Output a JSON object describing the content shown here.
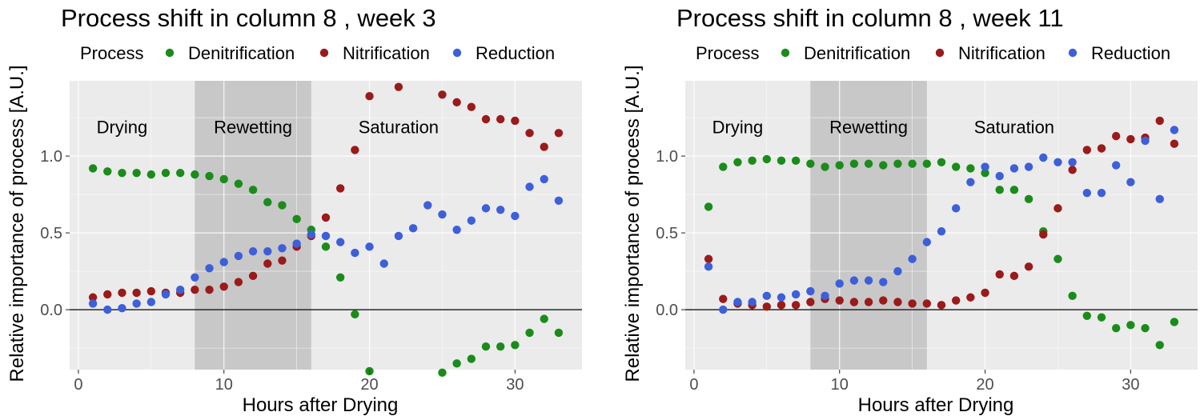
{
  "chart_data": [
    {
      "type": "scatter",
      "title": "Process shift in column 8 , week 3",
      "xlabel": "Hours after Drying",
      "ylabel": "Relative importance of process [A.U.]",
      "xlim": [
        -0.6,
        34.6
      ],
      "ylim": [
        -0.39,
        1.49
      ],
      "xticks": [
        0,
        10,
        20,
        30
      ],
      "yticks": [
        0.0,
        0.5,
        1.0
      ],
      "ytick_labels": [
        "0.0",
        "0.5",
        "1.0"
      ],
      "grid": true,
      "hline_y": 0,
      "legend": {
        "title": "Process",
        "position": "top"
      },
      "phases": [
        {
          "label": "Drying",
          "x0": -0.6,
          "x1": 8,
          "shaded": false
        },
        {
          "label": "Rewetting",
          "x0": 8,
          "x1": 16,
          "shaded": true
        },
        {
          "label": "Saturation",
          "x0": 16,
          "x1": 34.6,
          "shaded": false
        }
      ],
      "phase_label_y": 1.19,
      "series": [
        {
          "name": "Denitrification",
          "color": "#1a8c1a",
          "x": [
            1,
            2,
            3,
            4,
            5,
            6,
            7,
            8,
            9,
            10,
            11,
            12,
            13,
            14,
            15,
            16,
            17,
            18,
            19,
            20,
            25,
            26,
            27,
            28,
            29,
            30,
            31,
            32,
            33
          ],
          "y": [
            0.92,
            0.9,
            0.89,
            0.89,
            0.88,
            0.89,
            0.89,
            0.88,
            0.87,
            0.85,
            0.82,
            0.78,
            0.7,
            0.68,
            0.59,
            0.52,
            0.41,
            0.21,
            -0.03,
            -0.4,
            -0.41,
            -0.35,
            -0.32,
            -0.24,
            -0.24,
            -0.23,
            -0.15,
            -0.06,
            -0.15
          ]
        },
        {
          "name": "Nitrification",
          "color": "#9b1a1a",
          "x": [
            1,
            2,
            3,
            4,
            5,
            6,
            7,
            8,
            9,
            10,
            11,
            12,
            13,
            14,
            15,
            16,
            17,
            18,
            19,
            20,
            22,
            25,
            26,
            27,
            28,
            29,
            30,
            31,
            32,
            33
          ],
          "y": [
            0.08,
            0.1,
            0.11,
            0.11,
            0.12,
            0.11,
            0.11,
            0.13,
            0.13,
            0.15,
            0.18,
            0.22,
            0.3,
            0.32,
            0.41,
            0.48,
            0.6,
            0.79,
            1.04,
            1.39,
            1.45,
            1.4,
            1.35,
            1.32,
            1.24,
            1.24,
            1.23,
            1.15,
            1.06,
            1.15
          ]
        },
        {
          "name": "Reduction",
          "color": "#3d5fd9",
          "x": [
            1,
            2,
            3,
            4,
            5,
            6,
            7,
            8,
            9,
            10,
            11,
            12,
            13,
            14,
            15,
            16,
            17,
            18,
            19,
            20,
            21,
            22,
            23,
            24,
            25,
            26,
            27,
            28,
            29,
            30,
            31,
            32,
            33
          ],
          "y": [
            0.04,
            0.0,
            0.01,
            0.04,
            0.05,
            0.1,
            0.13,
            0.21,
            0.27,
            0.31,
            0.35,
            0.38,
            0.38,
            0.4,
            0.43,
            0.49,
            0.48,
            0.44,
            0.37,
            0.41,
            0.3,
            0.48,
            0.53,
            0.68,
            0.62,
            0.52,
            0.58,
            0.66,
            0.65,
            0.61,
            0.8,
            0.85,
            0.71
          ]
        }
      ]
    },
    {
      "type": "scatter",
      "title": "Process shift in column 8 , week 11",
      "xlabel": "Hours after Drying",
      "ylabel": "Relative importance of process [A.U.]",
      "xlim": [
        -0.6,
        34.6
      ],
      "ylim": [
        -0.39,
        1.49
      ],
      "xticks": [
        0,
        10,
        20,
        30
      ],
      "yticks": [
        0.0,
        0.5,
        1.0
      ],
      "ytick_labels": [
        "0.0",
        "0.5",
        "1.0"
      ],
      "grid": true,
      "hline_y": 0,
      "legend": {
        "title": "Process",
        "position": "top"
      },
      "phases": [
        {
          "label": "Drying",
          "x0": -0.6,
          "x1": 8,
          "shaded": false
        },
        {
          "label": "Rewetting",
          "x0": 8,
          "x1": 16,
          "shaded": true
        },
        {
          "label": "Saturation",
          "x0": 16,
          "x1": 34.6,
          "shaded": false
        }
      ],
      "phase_label_y": 1.19,
      "series": [
        {
          "name": "Denitrification",
          "color": "#1a8c1a",
          "x": [
            1,
            2,
            3,
            4,
            5,
            6,
            7,
            8,
            9,
            10,
            11,
            12,
            13,
            14,
            15,
            16,
            17,
            18,
            19,
            20,
            21,
            22,
            23,
            24,
            25,
            26,
            27,
            28,
            29,
            30,
            31,
            32,
            33
          ],
          "y": [
            0.67,
            0.93,
            0.96,
            0.97,
            0.98,
            0.97,
            0.97,
            0.95,
            0.93,
            0.94,
            0.95,
            0.95,
            0.94,
            0.95,
            0.95,
            0.95,
            0.96,
            0.93,
            0.92,
            0.89,
            0.78,
            0.78,
            0.72,
            0.51,
            0.33,
            0.09,
            -0.04,
            -0.05,
            -0.12,
            -0.1,
            -0.12,
            -0.23,
            -0.08
          ]
        },
        {
          "name": "Nitrification",
          "color": "#9b1a1a",
          "x": [
            1,
            2,
            3,
            4,
            5,
            6,
            7,
            8,
            9,
            10,
            11,
            12,
            13,
            14,
            15,
            16,
            17,
            18,
            19,
            20,
            21,
            22,
            23,
            24,
            25,
            26,
            27,
            28,
            29,
            30,
            31,
            32,
            33
          ],
          "y": [
            0.33,
            0.07,
            0.04,
            0.03,
            0.02,
            0.03,
            0.03,
            0.05,
            0.07,
            0.06,
            0.05,
            0.05,
            0.06,
            0.05,
            0.04,
            0.04,
            0.03,
            0.06,
            0.08,
            0.11,
            0.23,
            0.22,
            0.28,
            0.49,
            0.66,
            0.91,
            1.04,
            1.05,
            1.13,
            1.11,
            1.12,
            1.23,
            1.08
          ]
        },
        {
          "name": "Reduction",
          "color": "#3d5fd9",
          "x": [
            1,
            2,
            3,
            4,
            5,
            6,
            7,
            8,
            9,
            10,
            11,
            12,
            13,
            14,
            15,
            16,
            17,
            18,
            19,
            20,
            21,
            22,
            23,
            24,
            25,
            26,
            27,
            28,
            29,
            30,
            31,
            32,
            33
          ],
          "y": [
            0.28,
            0.0,
            0.05,
            0.05,
            0.09,
            0.08,
            0.1,
            0.12,
            0.09,
            0.17,
            0.19,
            0.19,
            0.18,
            0.25,
            0.33,
            0.44,
            0.51,
            0.66,
            0.83,
            0.93,
            0.87,
            0.92,
            0.93,
            0.99,
            0.96,
            0.96,
            0.76,
            0.76,
            0.94,
            0.83,
            1.1,
            0.72,
            1.17
          ]
        }
      ]
    }
  ]
}
